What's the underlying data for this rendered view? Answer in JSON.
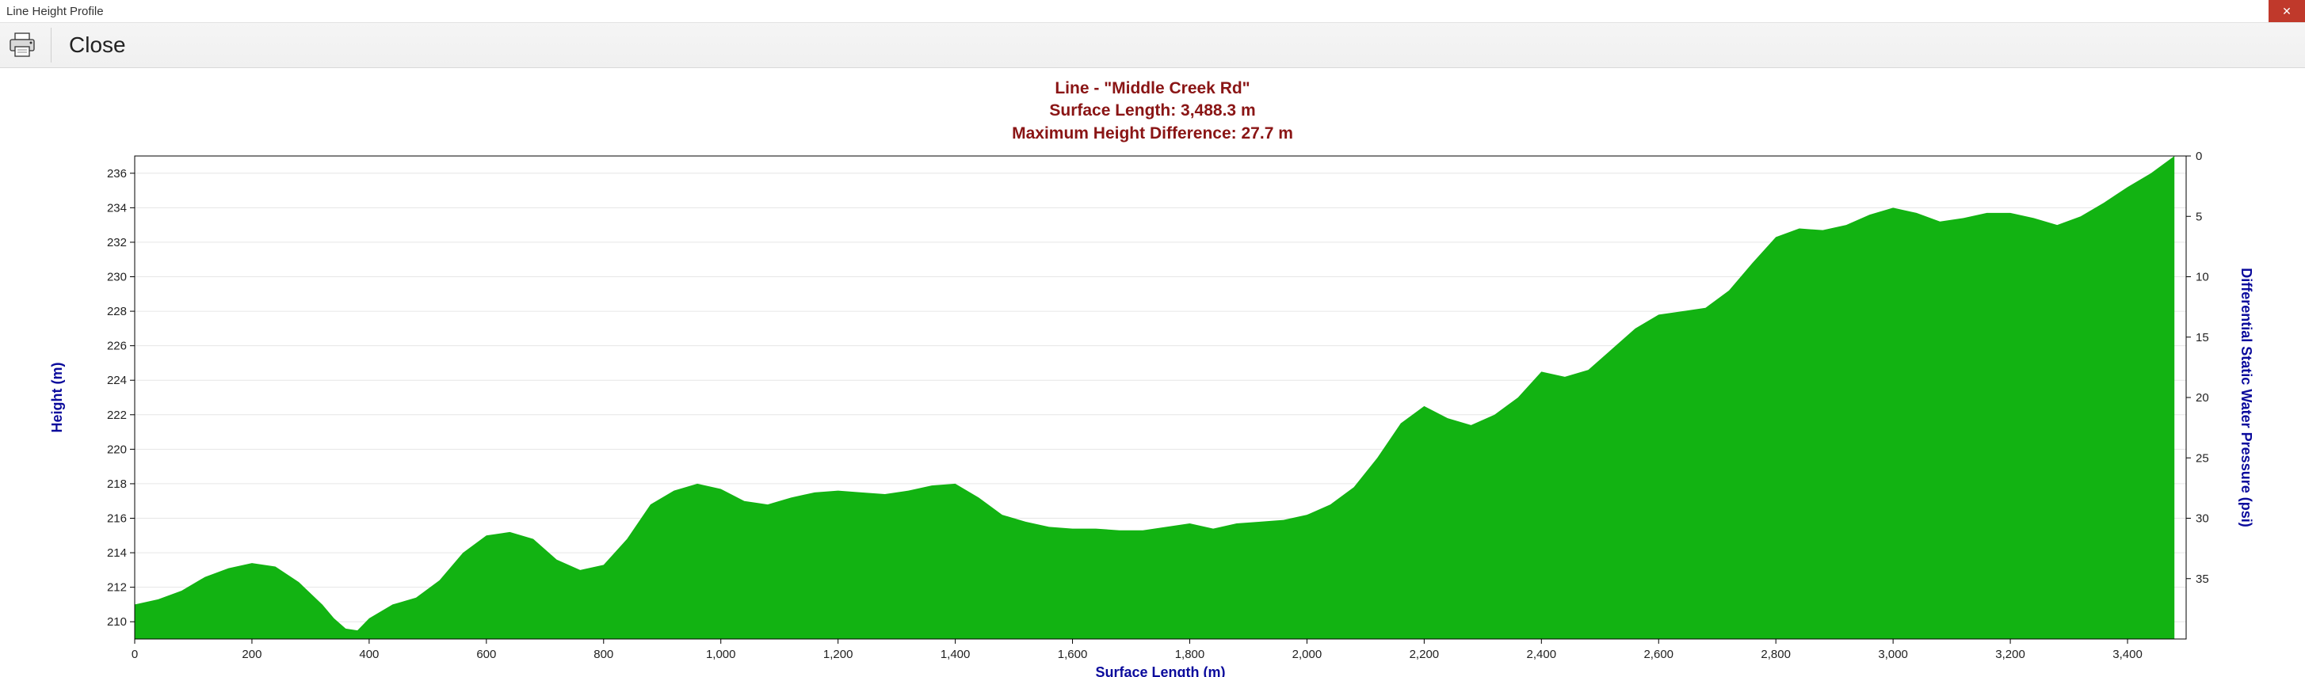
{
  "window": {
    "title": "Line Height Profile"
  },
  "toolbar": {
    "close_label": "Close"
  },
  "chart": {
    "title_line": "Line - \"Middle Creek Rd\"",
    "title_surface_length": "Surface Length: 3,488.3 m",
    "title_max_height_diff": "Maximum Height Difference: 27.7 m",
    "title_color": "#8a1515",
    "x_axis_label": "Surface Length (m)",
    "y_axis_left_label": "Height (m)",
    "y_axis_right_label": "Differential Static Water Pressure (psi)",
    "axis_label_color": "#0b0b9c",
    "fill_color": "#12b312",
    "grid_color": "#e6e6e6",
    "border_color": "#000000",
    "tick_label_color": "#222222",
    "tick_fontsize": 15,
    "axis_label_fontsize": 18,
    "title_fontsize": 21,
    "xlim": [
      0,
      3500
    ],
    "ylim_left": [
      209,
      237
    ],
    "ylim_right": [
      40,
      0
    ],
    "x_ticks": [
      0,
      200,
      400,
      600,
      800,
      1000,
      1200,
      1400,
      1600,
      1800,
      2000,
      2200,
      2400,
      2600,
      2800,
      3000,
      3200,
      3400
    ],
    "x_tick_labels": [
      "0",
      "200",
      "400",
      "600",
      "800",
      "1,000",
      "1,200",
      "1,400",
      "1,600",
      "1,800",
      "2,000",
      "2,200",
      "2,400",
      "2,600",
      "2,800",
      "3,000",
      "3,200",
      "3,400"
    ],
    "y_left_ticks": [
      210,
      212,
      214,
      216,
      218,
      220,
      222,
      224,
      226,
      228,
      230,
      232,
      234,
      236
    ],
    "y_right_ticks": [
      0,
      5,
      10,
      15,
      20,
      25,
      30,
      35
    ],
    "profile": [
      [
        0,
        211
      ],
      [
        40,
        211.3
      ],
      [
        80,
        211.8
      ],
      [
        120,
        212.6
      ],
      [
        160,
        213.1
      ],
      [
        200,
        213.4
      ],
      [
        240,
        213.2
      ],
      [
        280,
        212.3
      ],
      [
        320,
        211
      ],
      [
        340,
        210.2
      ],
      [
        360,
        209.6
      ],
      [
        380,
        209.5
      ],
      [
        400,
        210.2
      ],
      [
        440,
        211
      ],
      [
        480,
        211.4
      ],
      [
        520,
        212.4
      ],
      [
        560,
        214.0
      ],
      [
        600,
        215.0
      ],
      [
        640,
        215.2
      ],
      [
        680,
        214.8
      ],
      [
        720,
        213.6
      ],
      [
        760,
        213.0
      ],
      [
        800,
        213.3
      ],
      [
        840,
        214.8
      ],
      [
        880,
        216.8
      ],
      [
        920,
        217.6
      ],
      [
        960,
        218.0
      ],
      [
        1000,
        217.7
      ],
      [
        1040,
        217.0
      ],
      [
        1080,
        216.8
      ],
      [
        1120,
        217.2
      ],
      [
        1160,
        217.5
      ],
      [
        1200,
        217.6
      ],
      [
        1240,
        217.5
      ],
      [
        1280,
        217.4
      ],
      [
        1320,
        217.6
      ],
      [
        1360,
        217.9
      ],
      [
        1400,
        218.0
      ],
      [
        1440,
        217.2
      ],
      [
        1480,
        216.2
      ],
      [
        1520,
        215.8
      ],
      [
        1560,
        215.5
      ],
      [
        1600,
        215.4
      ],
      [
        1640,
        215.4
      ],
      [
        1680,
        215.3
      ],
      [
        1720,
        215.3
      ],
      [
        1760,
        215.5
      ],
      [
        1800,
        215.7
      ],
      [
        1840,
        215.4
      ],
      [
        1880,
        215.7
      ],
      [
        1920,
        215.8
      ],
      [
        1960,
        215.9
      ],
      [
        2000,
        216.2
      ],
      [
        2040,
        216.8
      ],
      [
        2080,
        217.8
      ],
      [
        2120,
        219.5
      ],
      [
        2160,
        221.5
      ],
      [
        2200,
        222.5
      ],
      [
        2240,
        221.8
      ],
      [
        2280,
        221.4
      ],
      [
        2320,
        222.0
      ],
      [
        2360,
        223.0
      ],
      [
        2400,
        224.5
      ],
      [
        2440,
        224.2
      ],
      [
        2480,
        224.6
      ],
      [
        2520,
        225.8
      ],
      [
        2560,
        227.0
      ],
      [
        2600,
        227.8
      ],
      [
        2640,
        228.0
      ],
      [
        2680,
        228.2
      ],
      [
        2720,
        229.2
      ],
      [
        2760,
        230.8
      ],
      [
        2800,
        232.3
      ],
      [
        2840,
        232.8
      ],
      [
        2880,
        232.7
      ],
      [
        2920,
        233.0
      ],
      [
        2960,
        233.6
      ],
      [
        3000,
        234.0
      ],
      [
        3040,
        233.7
      ],
      [
        3080,
        233.2
      ],
      [
        3120,
        233.4
      ],
      [
        3160,
        233.7
      ],
      [
        3200,
        233.7
      ],
      [
        3240,
        233.4
      ],
      [
        3280,
        233.0
      ],
      [
        3320,
        233.5
      ],
      [
        3360,
        234.3
      ],
      [
        3400,
        235.2
      ],
      [
        3440,
        236.0
      ],
      [
        3480,
        237.0
      ]
    ]
  }
}
